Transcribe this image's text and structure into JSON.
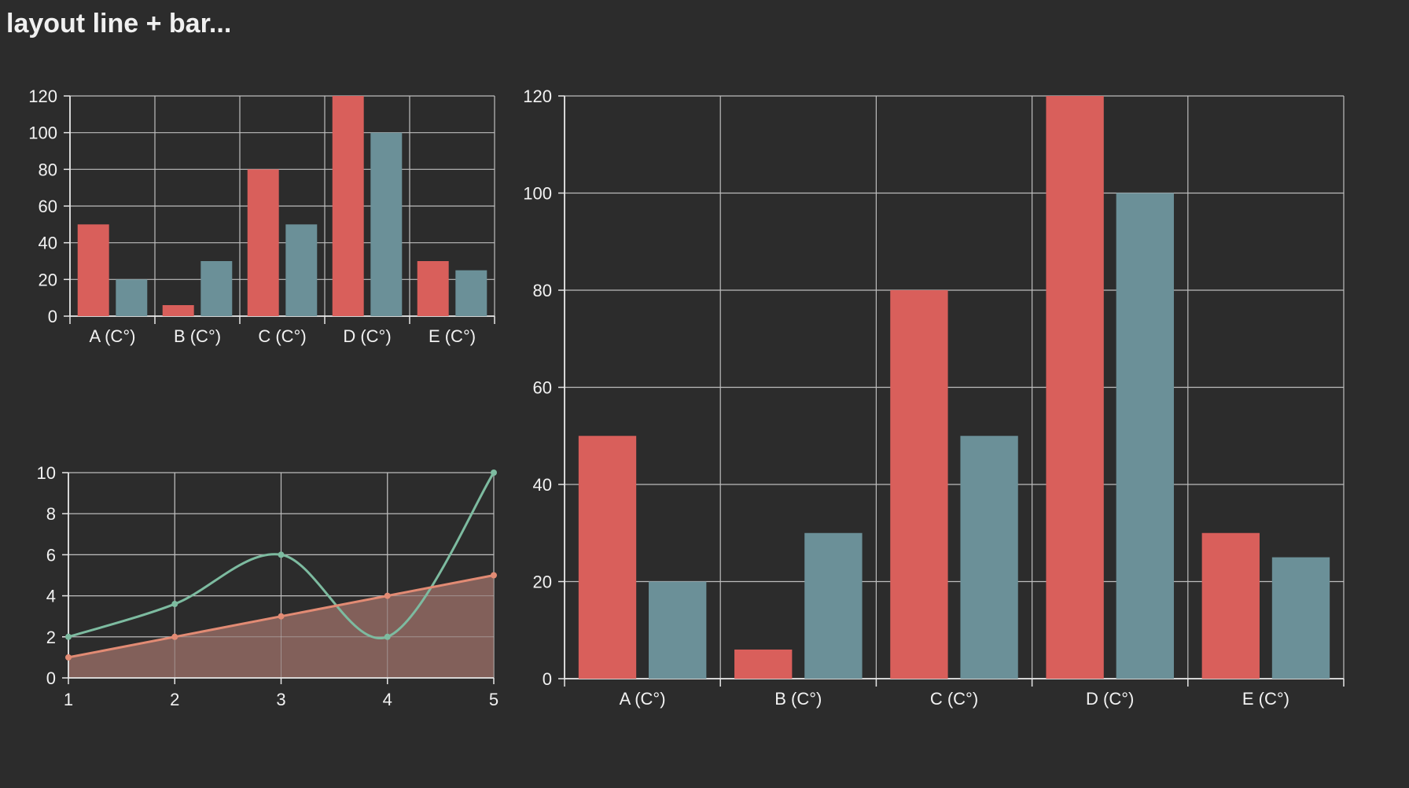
{
  "page": {
    "title": "layout line + bar..."
  },
  "colors": {
    "background": "#2c2c2c",
    "grid": "#bdbdbd",
    "axis": "#e6e6e6",
    "text": "#f2f2f2",
    "series_red": "#d95f5b",
    "series_teal": "#6b9098",
    "line_green": "#7dbba0",
    "line_salmon": "#e28b74",
    "area_fill": "#82605a"
  },
  "chart_data": [
    {
      "type": "bar",
      "id": "small-bar",
      "categories": [
        "A (C°)",
        "B (C°)",
        "C (C°)",
        "D (C°)",
        "E (C°)"
      ],
      "series": [
        {
          "values": [
            50,
            6,
            80,
            120,
            30
          ],
          "color": "#d95f5b"
        },
        {
          "values": [
            20,
            30,
            50,
            100,
            25
          ],
          "color": "#6b9098"
        }
      ],
      "yticks": [
        "0",
        "20",
        "40",
        "60",
        "80",
        "100",
        "120"
      ],
      "ylim": [
        0,
        120
      ],
      "grid": true
    },
    {
      "type": "line",
      "id": "line-area",
      "x": [
        1,
        2,
        3,
        4,
        5
      ],
      "xticks": [
        "1",
        "2",
        "3",
        "4",
        "5"
      ],
      "yticks": [
        "0",
        "2",
        "4",
        "6",
        "8",
        "10"
      ],
      "xlim": [
        1,
        5
      ],
      "ylim": [
        0,
        10
      ],
      "series": [
        {
          "values": [
            2,
            3.6,
            6,
            2,
            10
          ],
          "color": "#7dbba0",
          "smooth": true,
          "area": false
        },
        {
          "values": [
            1,
            2,
            3,
            4,
            5
          ],
          "color": "#e28b74",
          "smooth": false,
          "area": true
        }
      ],
      "grid": true
    },
    {
      "type": "bar",
      "id": "large-bar",
      "categories": [
        "A (C°)",
        "B (C°)",
        "C (C°)",
        "D (C°)",
        "E (C°)"
      ],
      "series": [
        {
          "values": [
            50,
            6,
            80,
            120,
            30
          ],
          "color": "#d95f5b"
        },
        {
          "values": [
            20,
            30,
            50,
            100,
            25
          ],
          "color": "#6b9098"
        }
      ],
      "yticks": [
        "0",
        "20",
        "40",
        "60",
        "80",
        "100",
        "120"
      ],
      "ylim": [
        0,
        120
      ],
      "grid": true
    }
  ]
}
